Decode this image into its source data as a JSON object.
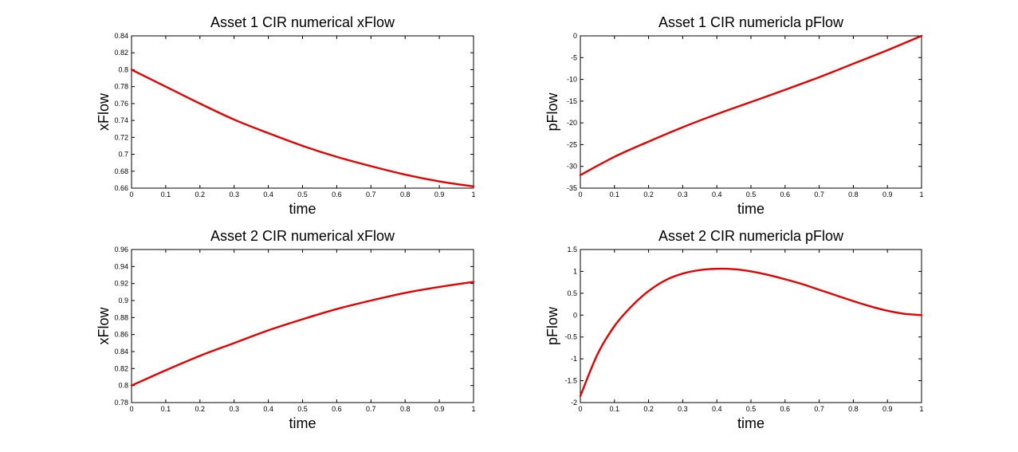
{
  "figure": {
    "background": "#ffffff"
  },
  "chart_data": [
    {
      "type": "line",
      "title": "Asset 1 CIR numerical xFlow",
      "xlabel": "time",
      "ylabel": "xFlow",
      "xlim": [
        0,
        1
      ],
      "ylim": [
        0.66,
        0.84
      ],
      "xticks": [
        0,
        0.1,
        0.2,
        0.3,
        0.4,
        0.5,
        0.6,
        0.7,
        0.8,
        0.9,
        1
      ],
      "xtick_labels": [
        "0",
        "0.1",
        "0.2",
        "0.3",
        "0.4",
        "0.5",
        "0.6",
        "0.7",
        "0.8",
        "0.9",
        "1"
      ],
      "yticks": [
        0.66,
        0.68,
        0.7,
        0.72,
        0.74,
        0.76,
        0.78,
        0.8,
        0.82,
        0.84
      ],
      "ytick_labels": [
        "0.66",
        "0.68",
        "0.7",
        "0.72",
        "0.74",
        "0.76",
        "0.78",
        "0.8",
        "0.82",
        "0.84"
      ],
      "grid": false,
      "color": "#e00000",
      "x": [
        0,
        0.1,
        0.2,
        0.3,
        0.4,
        0.5,
        0.6,
        0.7,
        0.8,
        0.9,
        1
      ],
      "y": [
        0.8,
        0.78,
        0.76,
        0.741,
        0.725,
        0.71,
        0.697,
        0.686,
        0.676,
        0.668,
        0.662
      ]
    },
    {
      "type": "line",
      "title": "Asset 1 CIR numericla pFlow",
      "xlabel": "time",
      "ylabel": "pFlow",
      "xlim": [
        0,
        1
      ],
      "ylim": [
        -35,
        0
      ],
      "xticks": [
        0,
        0.1,
        0.2,
        0.3,
        0.4,
        0.5,
        0.6,
        0.7,
        0.8,
        0.9,
        1
      ],
      "xtick_labels": [
        "0",
        "0.1",
        "0.2",
        "0.3",
        "0.4",
        "0.5",
        "0.6",
        "0.7",
        "0.8",
        "0.9",
        "1"
      ],
      "yticks": [
        -35,
        -30,
        -25,
        -20,
        -15,
        -10,
        -5,
        0
      ],
      "ytick_labels": [
        "-35",
        "-30",
        "-25",
        "-20",
        "-15",
        "-10",
        "-5",
        "0"
      ],
      "grid": false,
      "color": "#e00000",
      "x": [
        0,
        0.1,
        0.2,
        0.3,
        0.4,
        0.5,
        0.6,
        0.7,
        0.8,
        0.9,
        1
      ],
      "y": [
        -32,
        -27.8,
        -24.3,
        -21,
        -18,
        -15.2,
        -12.4,
        -9.5,
        -6.4,
        -3.3,
        0
      ]
    },
    {
      "type": "line",
      "title": "Asset 2 CIR numerical xFlow",
      "xlabel": "time",
      "ylabel": "xFlow",
      "xlim": [
        0,
        1
      ],
      "ylim": [
        0.78,
        0.96
      ],
      "xticks": [
        0,
        0.1,
        0.2,
        0.3,
        0.4,
        0.5,
        0.6,
        0.7,
        0.8,
        0.9,
        1
      ],
      "xtick_labels": [
        "0",
        "0.1",
        "0.2",
        "0.3",
        "0.4",
        "0.5",
        "0.6",
        "0.7",
        "0.8",
        "0.9",
        "1"
      ],
      "yticks": [
        0.78,
        0.8,
        0.82,
        0.84,
        0.86,
        0.88,
        0.9,
        0.92,
        0.94,
        0.96
      ],
      "ytick_labels": [
        "0.78",
        "0.8",
        "0.82",
        "0.84",
        "0.86",
        "0.88",
        "0.9",
        "0.92",
        "0.94",
        "0.96"
      ],
      "grid": false,
      "color": "#e00000",
      "x": [
        0,
        0.1,
        0.2,
        0.3,
        0.4,
        0.5,
        0.6,
        0.7,
        0.8,
        0.9,
        1
      ],
      "y": [
        0.8,
        0.818,
        0.835,
        0.85,
        0.865,
        0.878,
        0.89,
        0.9,
        0.909,
        0.916,
        0.922
      ]
    },
    {
      "type": "line",
      "title": "Asset 2 CIR numericla pFlow",
      "xlabel": "time",
      "ylabel": "pFlow",
      "xlim": [
        0,
        1
      ],
      "ylim": [
        -2,
        1.5
      ],
      "xticks": [
        0,
        0.1,
        0.2,
        0.3,
        0.4,
        0.5,
        0.6,
        0.7,
        0.8,
        0.9,
        1
      ],
      "xtick_labels": [
        "0",
        "0.1",
        "0.2",
        "0.3",
        "0.4",
        "0.5",
        "0.6",
        "0.7",
        "0.8",
        "0.9",
        "1"
      ],
      "yticks": [
        -2,
        -1.5,
        -1,
        -0.5,
        0,
        0.5,
        1,
        1.5
      ],
      "ytick_labels": [
        "-2",
        "-1.5",
        "-1",
        "-0.5",
        "0",
        "0.5",
        "1",
        "1.5"
      ],
      "grid": false,
      "color": "#e00000",
      "x": [
        0,
        0.05,
        0.1,
        0.15,
        0.2,
        0.25,
        0.3,
        0.35,
        0.4,
        0.45,
        0.5,
        0.55,
        0.6,
        0.65,
        0.7,
        0.75,
        0.8,
        0.85,
        0.9,
        0.95,
        1
      ],
      "y": [
        -1.85,
        -0.9,
        -0.25,
        0.2,
        0.55,
        0.8,
        0.95,
        1.03,
        1.06,
        1.05,
        1.0,
        0.92,
        0.82,
        0.71,
        0.58,
        0.45,
        0.32,
        0.2,
        0.1,
        0.03,
        0
      ]
    }
  ]
}
